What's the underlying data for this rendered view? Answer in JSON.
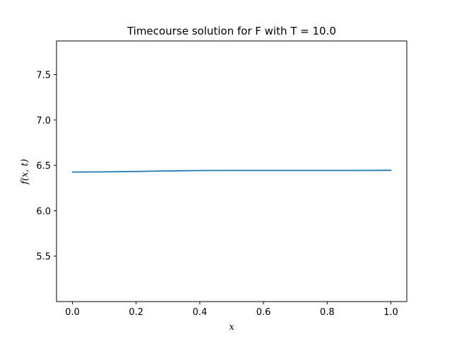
{
  "chart_data": {
    "type": "line",
    "title": "Timecourse solution for F with T = 10.0",
    "xlabel": "x",
    "ylabel": "f(x, t)",
    "xlim": [
      -0.05,
      1.05
    ],
    "ylim": [
      5.0,
      7.87
    ],
    "xticks": [
      0.0,
      0.2,
      0.4,
      0.6,
      0.8,
      1.0
    ],
    "xtick_labels": [
      "0.0",
      "0.2",
      "0.4",
      "0.6",
      "0.8",
      "1.0"
    ],
    "yticks": [
      5.5,
      6.0,
      6.5,
      7.0,
      7.5
    ],
    "ytick_labels": [
      "5.5",
      "6.0",
      "6.5",
      "7.0",
      "7.5"
    ],
    "grid": false,
    "series": [
      {
        "color": "#1f77b4",
        "x": [
          0.0,
          0.1,
          0.2,
          0.3,
          0.4,
          0.5,
          0.6,
          0.7,
          0.8,
          0.9,
          1.0
        ],
        "y": [
          6.426,
          6.428,
          6.433,
          6.439,
          6.443,
          6.444,
          6.444,
          6.444,
          6.444,
          6.444,
          6.445
        ]
      }
    ]
  }
}
